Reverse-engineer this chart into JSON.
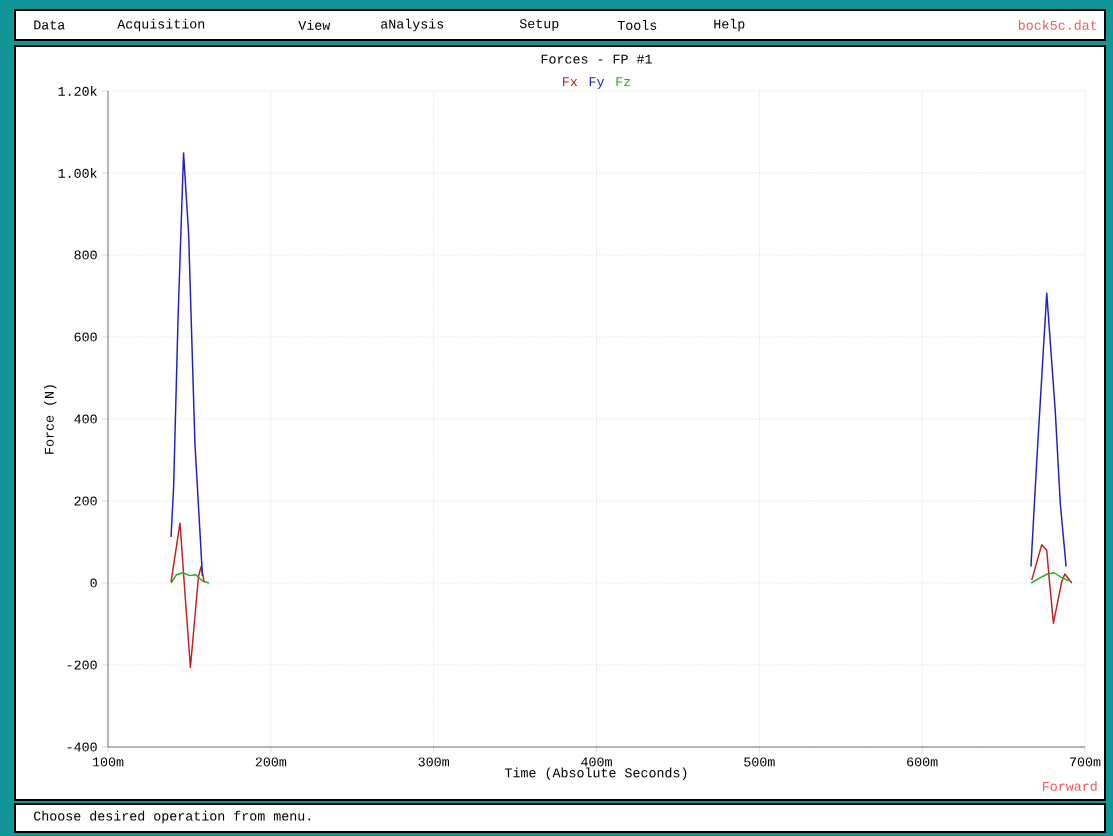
{
  "chart_data": {
    "type": "line",
    "title": "Forces  - FP #1",
    "xlabel": "Time (Absolute Seconds)",
    "ylabel": "Force (N)",
    "xlim": [
      100,
      700
    ],
    "ylim": [
      -400,
      1200
    ],
    "xticks": [
      {
        "value": 100,
        "label": "100m"
      },
      {
        "value": 200,
        "label": "200m"
      },
      {
        "value": 300,
        "label": "300m"
      },
      {
        "value": 400,
        "label": "400m"
      },
      {
        "value": 500,
        "label": "500m"
      },
      {
        "value": 600,
        "label": "600m"
      },
      {
        "value": 700,
        "label": "700m"
      }
    ],
    "yticks": [
      -400,
      -200,
      0,
      200,
      400,
      600,
      800,
      {
        "value": 1000,
        "label": "1.00k"
      },
      {
        "value": 1200,
        "label": "1.20k"
      }
    ],
    "grid": true,
    "legend": "top",
    "series": [
      {
        "name": "Fx",
        "color": "#c02020",
        "x": [
          138.7,
          144.2,
          147.3,
          150.6,
          155.6,
          157.3,
          159,
          400,
          667.3,
          673.4,
          676.5,
          678.1,
          680.6,
          685.7,
          687.6,
          691.9
        ],
        "values": [
          2,
          146,
          -27,
          -206,
          17,
          41,
          2,
          null,
          7,
          93,
          80,
          7,
          -98,
          3,
          22,
          0
        ]
      },
      {
        "name": "Fy",
        "color": "#2020c0",
        "x": [
          138.7,
          140.3,
          143,
          146.4,
          149.5,
          153.4,
          158,
          400,
          666.8,
          670.4,
          676.5,
          681.7,
          684.8,
          688.4
        ],
        "values": [
          112,
          234,
          644,
          1049,
          852,
          339,
          17,
          null,
          40,
          300,
          707,
          422,
          195,
          40
        ]
      },
      {
        "name": "Fz",
        "color": "#20b020",
        "x": [
          138.7,
          142,
          146,
          150,
          154,
          158,
          162,
          400,
          667,
          672,
          677,
          681,
          685,
          690
        ],
        "values": [
          0,
          20,
          25,
          18,
          20,
          5,
          0,
          null,
          0,
          12,
          22,
          25,
          15,
          5
        ]
      }
    ],
    "annotations": [
      "Data",
      "Acquisition",
      "View",
      "aNalysis",
      "Setup",
      "Tools",
      "Help",
      "bock5c.dat",
      "Forward",
      "Choose desired operation from menu."
    ]
  }
}
